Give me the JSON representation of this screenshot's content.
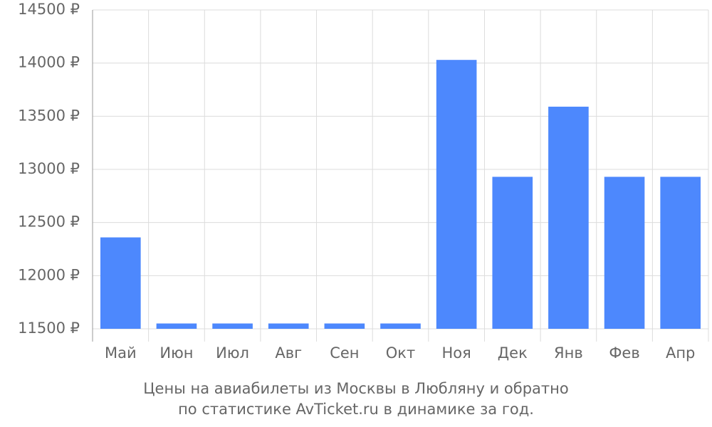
{
  "chart_data": {
    "type": "bar",
    "title": [
      "Цены на авиабилеты из Москвы в Любляну и обратно",
      "по статистике AvTicket.ru в динамике за год."
    ],
    "categories": [
      "Май",
      "Июн",
      "Июл",
      "Авг",
      "Сен",
      "Окт",
      "Ноя",
      "Дек",
      "Янв",
      "Фев",
      "Апр"
    ],
    "values": [
      12360,
      11550,
      11550,
      11550,
      11550,
      11550,
      14030,
      12930,
      13590,
      12930,
      12930
    ],
    "color": "#4d88fd",
    "ylim": [
      11500,
      14500
    ],
    "yticks": [
      {
        "value": 11500,
        "label": "11500 ₽"
      },
      {
        "value": 12000,
        "label": "12000 ₽"
      },
      {
        "value": 12500,
        "label": "12500 ₽"
      },
      {
        "value": 13000,
        "label": "13000 ₽"
      },
      {
        "value": 13500,
        "label": "13500 ₽"
      },
      {
        "value": 14000,
        "label": "14000 ₽"
      },
      {
        "value": 14500,
        "label": "14500 ₽"
      }
    ],
    "grid": true
  }
}
